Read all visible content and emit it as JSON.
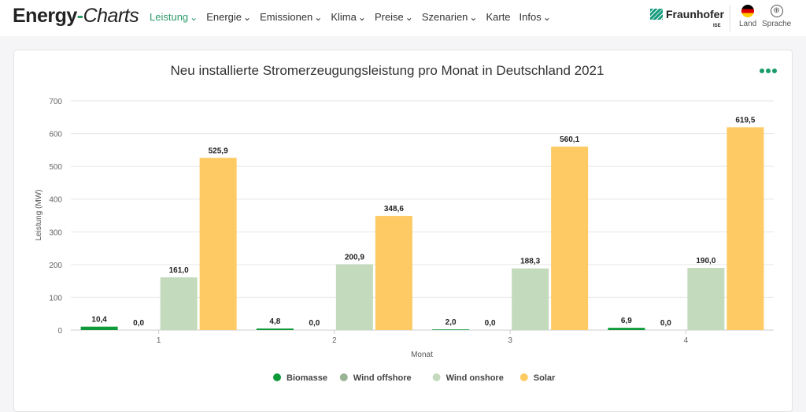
{
  "header": {
    "logo_main": "Energy",
    "logo_dash": "-",
    "logo_italic": "Charts",
    "menu": [
      "Leistung",
      "Energie",
      "Emissionen",
      "Klima",
      "Preise",
      "Szenarien",
      "Karte",
      "Infos"
    ],
    "menu_dropdown": [
      true,
      true,
      true,
      true,
      true,
      true,
      false,
      true
    ],
    "brand": "Fraunhofer",
    "brand_sub": "ISE",
    "land": "Land",
    "sprache": "Sprache"
  },
  "colors": {
    "Biomasse": "#0f9a3a",
    "Wind offshore": "#99b494",
    "Wind onshore": "#c3dbbc",
    "Solar": "#fdca64",
    "accent": "#2e9b6a"
  },
  "chart_data": {
    "type": "bar",
    "title": "Neu installierte Stromerzeugungsleistung pro Monat in Deutschland 2021",
    "xlabel": "Monat",
    "ylabel": "Leistung (MW)",
    "categories": [
      "1",
      "2",
      "3",
      "4"
    ],
    "ylim": [
      0,
      700
    ],
    "yticks": [
      0,
      100,
      200,
      300,
      400,
      500,
      600,
      700
    ],
    "legend_position": "bottom",
    "series": [
      {
        "name": "Biomasse",
        "values": [
          10.4,
          4.8,
          2.0,
          6.9
        ],
        "labels": [
          "10,4",
          "4,8",
          "2,0",
          "6,9"
        ]
      },
      {
        "name": "Wind offshore",
        "values": [
          0,
          0,
          0,
          0
        ],
        "labels": [
          "0,0",
          "0,0",
          "0,0",
          "0,0"
        ]
      },
      {
        "name": "Wind onshore",
        "values": [
          161.0,
          200.9,
          188.3,
          190.0
        ],
        "labels": [
          "161,0",
          "200,9",
          "188,3",
          "190,0"
        ]
      },
      {
        "name": "Solar",
        "values": [
          525.9,
          348.6,
          560.1,
          619.5
        ],
        "labels": [
          "525,9",
          "348,6",
          "560,1",
          "619,5"
        ]
      }
    ]
  }
}
